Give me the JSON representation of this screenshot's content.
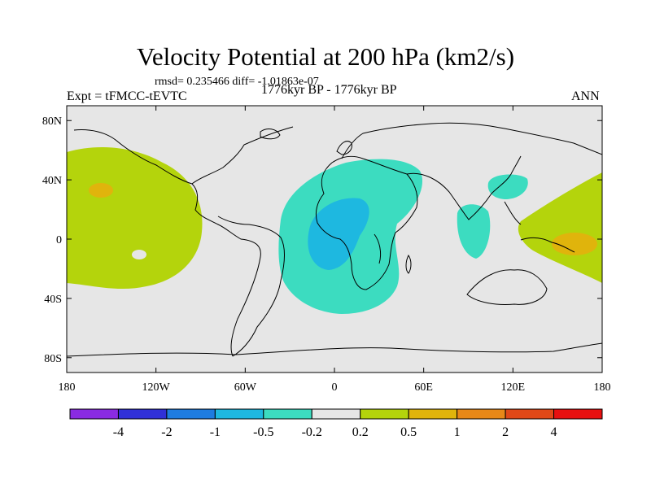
{
  "chart_data": {
    "type": "contour-map",
    "title": "Velocity Potential at 200 hPa (km2/s)",
    "rmsd_text": "rmsd= 0.235466 diff= -1.01863e-07",
    "experiment": "Expt = tFMCC-tEVTC",
    "period": "1776kyr BP - 1776kyr BP",
    "season": "ANN",
    "xlim": [
      -180,
      180
    ],
    "ylim": [
      -90,
      90
    ],
    "x_ticks": [
      {
        "value": -180,
        "label": "180"
      },
      {
        "value": -120,
        "label": "120W"
      },
      {
        "value": -60,
        "label": "60W"
      },
      {
        "value": 0,
        "label": "0"
      },
      {
        "value": 60,
        "label": "60E"
      },
      {
        "value": 120,
        "label": "120E"
      },
      {
        "value": 180,
        "label": "180"
      }
    ],
    "y_ticks": [
      {
        "value": 80,
        "label": "80N"
      },
      {
        "value": 40,
        "label": "40N"
      },
      {
        "value": 0,
        "label": "0"
      },
      {
        "value": -40,
        "label": "40S"
      },
      {
        "value": -80,
        "label": "80S"
      }
    ],
    "colorbar": {
      "colors": [
        "#8a2be2",
        "#3030d8",
        "#1e7ce0",
        "#1eb8e0",
        "#3cdcc0",
        "#e6e6e6",
        "#b4d40c",
        "#e0b40c",
        "#e88818",
        "#e04818",
        "#e81010"
      ],
      "labels": [
        "-4",
        "-2",
        "-1",
        "-0.5",
        "-0.2",
        "0.2",
        "0.5",
        "1",
        "2",
        "4"
      ]
    },
    "regions": [
      {
        "name": "pacific-positive",
        "level": "0.2 to 0.5",
        "center_lon": -140,
        "center_lat": 10
      },
      {
        "name": "pacific-max",
        "level": "0.5 to 1",
        "center_lon": -147,
        "center_lat": 35
      },
      {
        "name": "atlantic-africa-negative",
        "level": "-0.5 to -0.2",
        "center_lon": 5,
        "center_lat": 0
      },
      {
        "name": "africa-min",
        "level": "-1 to -0.5",
        "center_lon": -5,
        "center_lat": 8
      },
      {
        "name": "indian-negative",
        "level": "-0.5 to -0.2",
        "center_lon": 93,
        "center_lat": 8
      },
      {
        "name": "east-asia-negative",
        "level": "-0.5 to -0.2",
        "center_lon": 115,
        "center_lat": 37
      },
      {
        "name": "west-pacific-positive",
        "level": "0.2 to 0.5",
        "center_lon": 162,
        "center_lat": 5
      },
      {
        "name": "west-pacific-max",
        "level": "0.5 to 1",
        "center_lon": 162,
        "center_lat": -2
      }
    ]
  }
}
